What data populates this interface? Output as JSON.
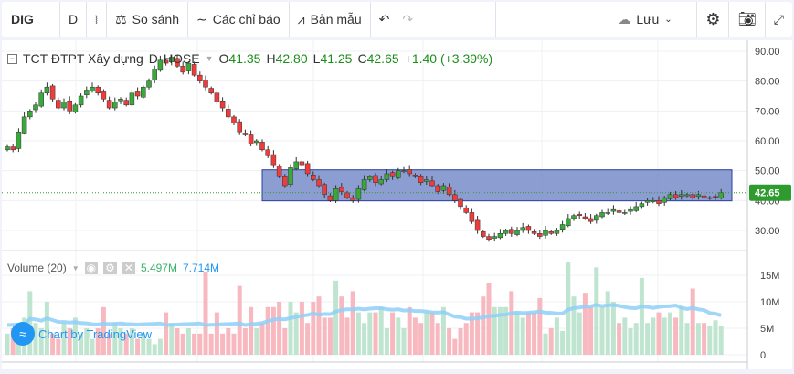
{
  "toolbar": {
    "symbol": "DIG",
    "interval": "D",
    "compare": "So sánh",
    "indicators": "Các chỉ báo",
    "templates": "Bản mẫu",
    "save": "Lưu"
  },
  "legend": {
    "name": "TCT ĐTPT Xây dựng",
    "interval": "D",
    "exchange": "HOSE",
    "o_label": "O",
    "open": "41.35",
    "h_label": "H",
    "high": "42.80",
    "l_label": "L",
    "low": "41.25",
    "c_label": "C",
    "close": "42.65",
    "change": "+1.40 (+3.39%)"
  },
  "volume_legend": {
    "label": "Volume (20)",
    "value": "5.497M",
    "ma": "7.714M"
  },
  "watermark": "Chart by TradingView",
  "colors": {
    "up": "#26a69a",
    "up_candle": "#3aa83a",
    "down": "#ef3b3b",
    "vol_up": "#bfe5d0",
    "vol_down": "#f7b8bf",
    "ma": "#8fd0f7",
    "zone": "#6f86c6",
    "last_price": "#2e9b2e"
  },
  "chart_data": {
    "type": "candlestick",
    "price_axis": {
      "ticks": [
        "90.00",
        "80.00",
        "70.00",
        "60.00",
        "50.00",
        "40.00",
        "30.00"
      ],
      "range": [
        24,
        92
      ]
    },
    "last_price": "42.65",
    "zone": {
      "top": 50.3,
      "bottom": 39.9
    },
    "volume_axis": {
      "ticks": [
        "15M",
        "10M",
        "5M",
        "0"
      ],
      "range": [
        0,
        18.5
      ]
    },
    "close": [
      58,
      57,
      63,
      68,
      70,
      72,
      76,
      78,
      74,
      71,
      73,
      70,
      72,
      75,
      77,
      78,
      76,
      74,
      71,
      73,
      74,
      72,
      76,
      75,
      78,
      80,
      84,
      87,
      86,
      88,
      85,
      83,
      86,
      82,
      80,
      78,
      76,
      73,
      71,
      68,
      66,
      63,
      62,
      59,
      60,
      57,
      55,
      52,
      48,
      45,
      51,
      53,
      52,
      49,
      47,
      45,
      42,
      40,
      44,
      43,
      41,
      40,
      44,
      47,
      48,
      46,
      47,
      49,
      48,
      50,
      50,
      49,
      48,
      46,
      47,
      45,
      43,
      45,
      42,
      40,
      38,
      36,
      33,
      30,
      28,
      27,
      28,
      29,
      30,
      29,
      30,
      31,
      30,
      29,
      28,
      30,
      29,
      30,
      32,
      34,
      35,
      35,
      34,
      33,
      35,
      36,
      36,
      37,
      36,
      36,
      37,
      38,
      39,
      40,
      40,
      39,
      41,
      42,
      41,
      42,
      42,
      41,
      42,
      41,
      41,
      41.25,
      42.65
    ],
    "volume": [
      4,
      5,
      6,
      7,
      12,
      6,
      5,
      10,
      4,
      3,
      6,
      5,
      7,
      4,
      5,
      3,
      5,
      9,
      4,
      6,
      5,
      4,
      5,
      3,
      4,
      3,
      2,
      3,
      8,
      6,
      5,
      4,
      5,
      4,
      4,
      15.7,
      4,
      8,
      4,
      5,
      4,
      13,
      5,
      9,
      5,
      6,
      9,
      9,
      10,
      5,
      10,
      8,
      10,
      6,
      10,
      11,
      7,
      7,
      14,
      11,
      7,
      12,
      8,
      6,
      8,
      8,
      9,
      5,
      8,
      7,
      5,
      9,
      7,
      6,
      8,
      8,
      6,
      9,
      5,
      3,
      5,
      6,
      8,
      8,
      11,
      13.5,
      9,
      9,
      9,
      12,
      8,
      7,
      8,
      8,
      10.7,
      4,
      5,
      7,
      4.5,
      17.5,
      11,
      8,
      11.7,
      9,
      16.5,
      9,
      12,
      10,
      6,
      7,
      5,
      6,
      14.5,
      6,
      7,
      8,
      7,
      8,
      7,
      9,
      6,
      12.5,
      6,
      6,
      5.5,
      6.5,
      5.5
    ]
  }
}
